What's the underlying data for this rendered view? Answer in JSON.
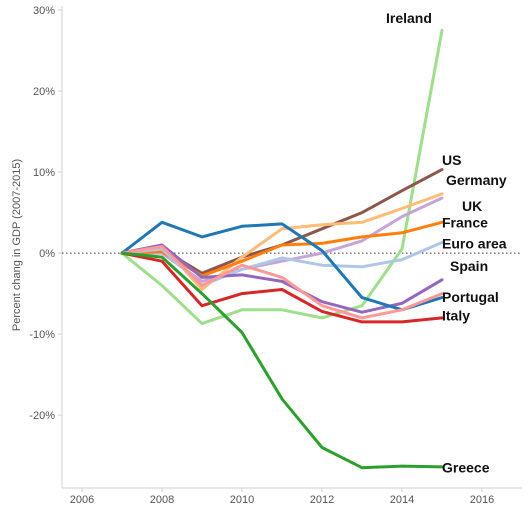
{
  "chart_data": {
    "type": "line",
    "title": "",
    "xlabel": "",
    "ylabel": "Percent chang in GDP (2007-2015)",
    "x": [
      2007,
      2008,
      2009,
      2010,
      2011,
      2012,
      2013,
      2014,
      2015
    ],
    "xlim": [
      2005.5,
      2017
    ],
    "ylim": [
      -29,
      30.5
    ],
    "xticks": [
      "2006",
      "2008",
      "2010",
      "2012",
      "2014",
      "2016"
    ],
    "yticks": [
      "30%",
      "20%",
      "10%",
      "0%",
      "-10%",
      "-20%"
    ],
    "ytick_values": [
      30,
      20,
      10,
      0,
      -10,
      -20
    ],
    "xtick_values": [
      2006,
      2008,
      2010,
      2012,
      2014,
      2016
    ],
    "zero_line": "dotted",
    "grid": false,
    "series": [
      {
        "name": "Ireland",
        "color": "#9ede8d",
        "values": [
          0,
          -4,
          -8.7,
          -7,
          -7,
          -8,
          -6.5,
          0.5,
          27.5
        ]
      },
      {
        "name": "US",
        "color": "#8c564b",
        "values": [
          0,
          0.5,
          -2.5,
          -0.5,
          1,
          3,
          5,
          7.7,
          10.3
        ]
      },
      {
        "name": "Germany",
        "color": "#ffbb78",
        "values": [
          0,
          1,
          -4.5,
          -0.5,
          3,
          3.5,
          3.8,
          5.5,
          7.3
        ]
      },
      {
        "name": "UK",
        "color": "#c5a5d5",
        "values": [
          0,
          0,
          -3.5,
          -2,
          -1,
          0,
          1.5,
          4.5,
          6.8
        ]
      },
      {
        "name": "France",
        "color": "#ff7f0e",
        "values": [
          0,
          0.2,
          -2.8,
          -1,
          1,
          1.2,
          2,
          2.5,
          3.8
        ]
      },
      {
        "name": "Euro area",
        "color": "#aec7e8",
        "values": [
          0,
          0.5,
          -4,
          -2,
          -0.6,
          -1.5,
          -1.7,
          -0.8,
          1.3
        ]
      },
      {
        "name": "Spain",
        "color": "#9467bd",
        "values": [
          0,
          1,
          -3,
          -2.7,
          -3.5,
          -6,
          -7.3,
          -6.2,
          -3.3
        ]
      },
      {
        "name": "Portugal",
        "color": "#1f77b4",
        "values": [
          0,
          3.8,
          2,
          3.3,
          3.6,
          0.3,
          -5.5,
          -7,
          -5.5
        ]
      },
      {
        "name": "Italy",
        "color": "#d62728",
        "values": [
          0,
          -1,
          -6.5,
          -5,
          -4.5,
          -7.2,
          -8.5,
          -8.5,
          -8
        ]
      },
      {
        "name": "Greece",
        "color": "#ff9896",
        "values": [
          0,
          0.8,
          -4,
          -1.5,
          -3,
          -6.5,
          -8,
          -7,
          -5
        ]
      },
      {
        "name": "Greece",
        "color": "#2ca02c",
        "values": [
          0,
          -0.5,
          -5,
          -9.8,
          -18,
          -24,
          -26.5,
          -26.3,
          -26.4
        ]
      }
    ],
    "labels": [
      {
        "text": "Ireland",
        "x": 2013.6,
        "y": 29
      },
      {
        "text": "US",
        "x": 2015.0,
        "y": 11.5
      },
      {
        "text": "Germany",
        "x": 2015.1,
        "y": 9
      },
      {
        "text": "UK",
        "x": 2015.5,
        "y": 5.8
      },
      {
        "text": "France",
        "x": 2015.0,
        "y": 3.8
      },
      {
        "text": "Euro area",
        "x": 2015.0,
        "y": 1.2
      },
      {
        "text": "Spain",
        "x": 2015.2,
        "y": -1.6
      },
      {
        "text": "Portugal",
        "x": 2015.0,
        "y": -5.4
      },
      {
        "text": "Italy",
        "x": 2015.0,
        "y": -7.7
      },
      {
        "text": "Greece",
        "x": 2015.0,
        "y": -26.5
      }
    ]
  }
}
